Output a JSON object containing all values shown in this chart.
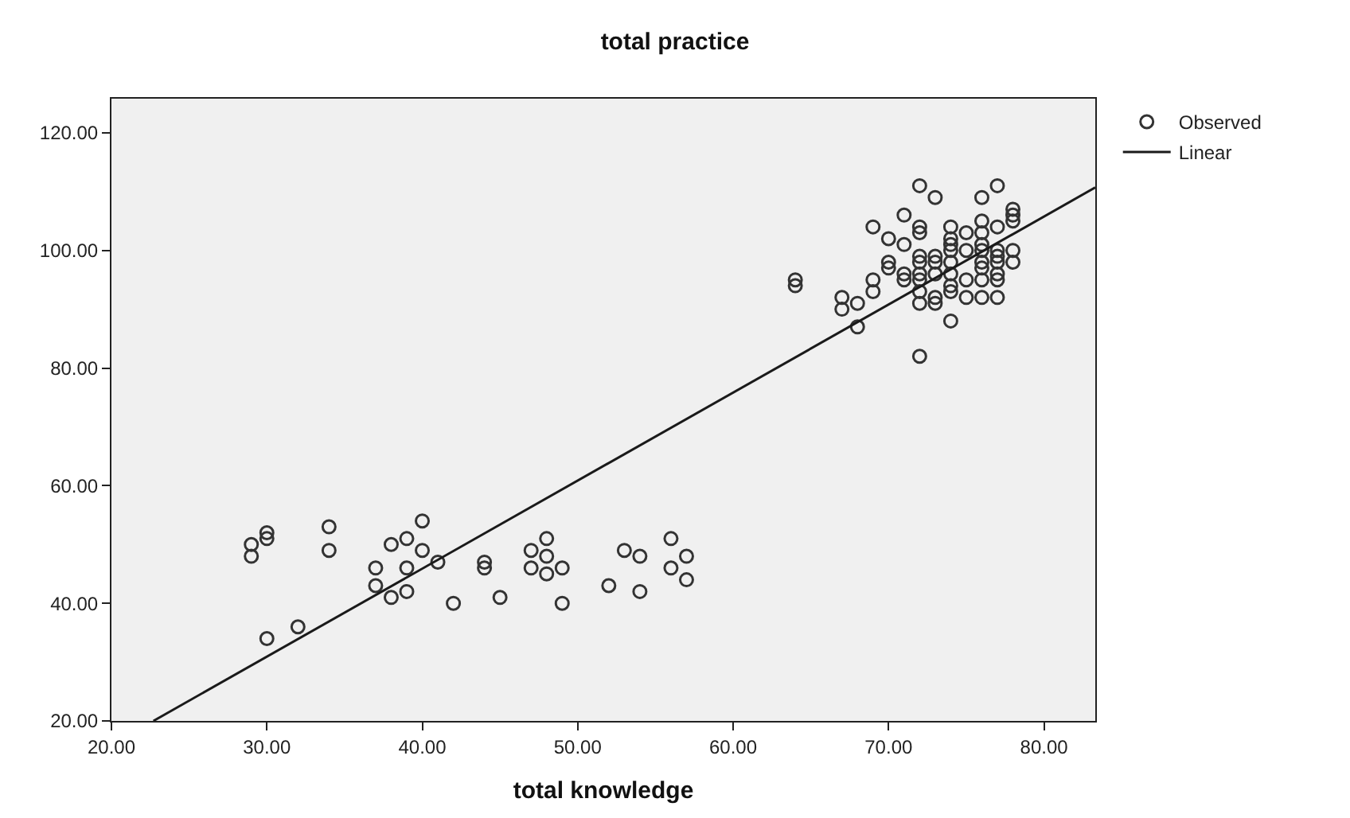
{
  "chart_data": {
    "type": "scatter",
    "title": "total practice",
    "xlabel": "total knowledge",
    "xlim": [
      20,
      83.3
    ],
    "ylim": [
      20,
      125.8
    ],
    "xticks": [
      {
        "value": 20,
        "label": "20.00"
      },
      {
        "value": 30,
        "label": "30.00"
      },
      {
        "value": 40,
        "label": "40.00"
      },
      {
        "value": 50,
        "label": "50.00"
      },
      {
        "value": 60,
        "label": "60.00"
      },
      {
        "value": 70,
        "label": "70.00"
      },
      {
        "value": 80,
        "label": "80.00"
      }
    ],
    "yticks": [
      {
        "value": 20,
        "label": "20.00"
      },
      {
        "value": 40,
        "label": "40.00"
      },
      {
        "value": 60,
        "label": "60.00"
      },
      {
        "value": 80,
        "label": "80.00"
      },
      {
        "value": 100,
        "label": "100.00"
      },
      {
        "value": 120,
        "label": "120.00"
      }
    ],
    "grid": false,
    "legend": "right",
    "marker": "circle",
    "series": [
      {
        "name": "Observed",
        "color": "#333333",
        "x": [
          29,
          29,
          30,
          30,
          30,
          32,
          34,
          34,
          37,
          37,
          38,
          38,
          39,
          39,
          39,
          40,
          40,
          41,
          42,
          44,
          44,
          45,
          47,
          47,
          48,
          48,
          48,
          49,
          49,
          52,
          53,
          54,
          54,
          56,
          56,
          57,
          57,
          64,
          64,
          67,
          67,
          68,
          68,
          69,
          69,
          69,
          70,
          70,
          70,
          71,
          71,
          71,
          71,
          72,
          72,
          72,
          72,
          72,
          72,
          72,
          72,
          72,
          72,
          73,
          73,
          73,
          73,
          73,
          73,
          74,
          74,
          74,
          74,
          74,
          74,
          74,
          74,
          74,
          75,
          75,
          75,
          75,
          76,
          76,
          76,
          76,
          76,
          76,
          76,
          76,
          76,
          77,
          77,
          77,
          77,
          77,
          77,
          77,
          77,
          78,
          78,
          78,
          78,
          78
        ],
        "values": [
          48,
          50,
          51,
          52,
          34,
          36,
          53,
          49,
          46,
          43,
          50,
          41,
          51,
          46,
          42,
          54,
          49,
          47,
          40,
          47,
          46,
          41,
          49,
          46,
          51,
          48,
          45,
          46,
          40,
          43,
          49,
          48,
          42,
          51,
          46,
          48,
          44,
          95,
          94,
          92,
          90,
          91,
          87,
          104,
          95,
          93,
          102,
          98,
          97,
          106,
          101,
          96,
          95,
          111,
          104,
          103,
          99,
          98,
          96,
          95,
          93,
          91,
          82,
          109,
          99,
          98,
          96,
          92,
          91,
          104,
          102,
          101,
          100,
          98,
          96,
          94,
          93,
          88,
          103,
          100,
          95,
          92,
          109,
          105,
          103,
          101,
          100,
          98,
          97,
          95,
          92,
          111,
          104,
          100,
          99,
          98,
          96,
          95,
          92,
          107,
          106,
          105,
          100,
          98
        ]
      },
      {
        "name": "Linear",
        "type": "line",
        "color": "#1a1a1a",
        "marker": "none",
        "line_style": "solid",
        "x": [
          22.7,
          83.3
        ],
        "values": [
          20,
          110.7
        ]
      }
    ]
  }
}
